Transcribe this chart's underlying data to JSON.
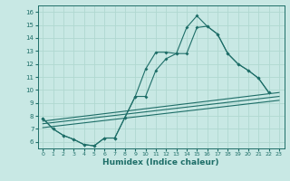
{
  "bg_color": "#c8e8e4",
  "grid_color": "#b0d8d0",
  "line_color": "#1e6e68",
  "xlabel": "Humidex (Indice chaleur)",
  "xlim": [
    -0.5,
    23.5
  ],
  "ylim": [
    5.5,
    16.5
  ],
  "xticks": [
    0,
    1,
    2,
    3,
    4,
    5,
    6,
    7,
    8,
    9,
    10,
    11,
    12,
    13,
    14,
    15,
    16,
    17,
    18,
    19,
    20,
    21,
    22,
    23
  ],
  "yticks": [
    6,
    7,
    8,
    9,
    10,
    11,
    12,
    13,
    14,
    15,
    16
  ],
  "series_main_x": [
    0,
    1,
    2,
    3,
    4,
    5,
    6,
    7,
    8,
    9,
    10,
    11,
    12,
    13,
    14,
    15,
    16,
    17,
    18,
    19,
    20,
    21,
    22
  ],
  "series_main_y": [
    7.8,
    7.0,
    6.5,
    6.2,
    5.8,
    5.7,
    6.3,
    6.3,
    7.9,
    9.5,
    11.6,
    12.9,
    12.9,
    12.8,
    14.8,
    15.7,
    14.9,
    14.3,
    12.8,
    12.0,
    11.5,
    10.9,
    9.8
  ],
  "series2_x": [
    0,
    1,
    2,
    3,
    4,
    5,
    6,
    7,
    8,
    9,
    10,
    11,
    12,
    13,
    14,
    15,
    16,
    17,
    18,
    19,
    20,
    21,
    22
  ],
  "series2_y": [
    7.8,
    7.0,
    6.5,
    6.2,
    5.8,
    5.7,
    6.3,
    6.3,
    7.9,
    9.5,
    9.5,
    11.5,
    12.4,
    12.8,
    12.8,
    14.8,
    14.9,
    14.3,
    12.8,
    12.0,
    11.5,
    10.9,
    9.8
  ],
  "trend1_x": [
    0,
    23
  ],
  "trend1_y": [
    7.6,
    9.8
  ],
  "trend2_x": [
    0,
    23
  ],
  "trend2_y": [
    7.4,
    9.5
  ],
  "trend3_x": [
    0,
    23
  ],
  "trend3_y": [
    7.1,
    9.2
  ]
}
